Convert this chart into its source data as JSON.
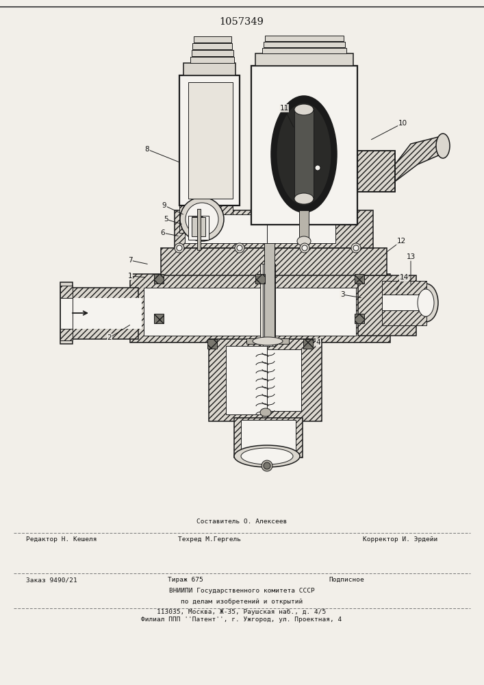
{
  "patent_number": "1057349",
  "page_color": "#f2efe9",
  "text_color": "#111111",
  "outline_color": "#1a1a1a",
  "hatch_color": "#333333",
  "fill_white": "#f5f3ef",
  "fill_light": "#dbd7cf",
  "fill_mid": "#b8b4aa",
  "fill_dark": "#7a7870",
  "title_fontsize": 10.5,
  "label_fontsize": 7.5,
  "footer_fontsize": 6.8,
  "footer": {
    "line1_above": "Составитель О. Алексеев",
    "line1_left": "Редактор Н. Кешеля",
    "line1_mid": "Техред М.Гергель",
    "line1_right": "Корректор И. Эрдейи",
    "line2_left": "Заказ 9490/21",
    "line2_mid": "Тираж 675",
    "line2_right": "Подписное",
    "line3": "ВНИИПИ Государственного комитета СССР",
    "line4": "по делам изобретений и открытий",
    "line5": "113035, Москва, Ж-35, Раушская наб., д. 4/5",
    "line6": "Филиал ППП ''Патент'', г. Ужгород, ул. Проектная, 4"
  }
}
